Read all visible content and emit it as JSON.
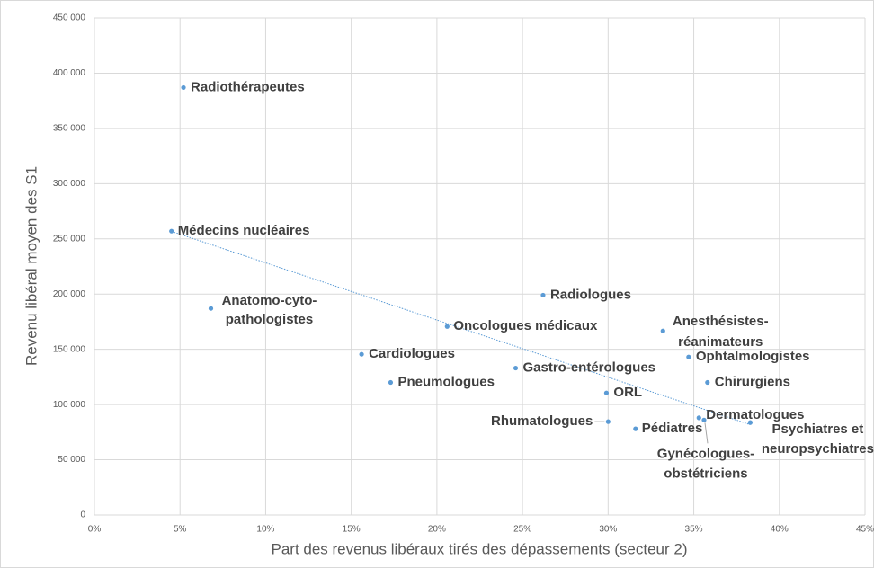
{
  "chart_data": {
    "type": "scatter",
    "x_label": "Part des revenus libéraux tirés des dépassements (secteur 2)",
    "y_label": "Revenu libéral moyen des S1",
    "labels": [
      [
        "Radiothérapeutes"
      ],
      [
        "Médecins nucléaires"
      ],
      [
        "Anatomo-cyto-",
        "pathologistes"
      ],
      [
        "Cardiologues"
      ],
      [
        "Pneumologues"
      ],
      [
        "Oncologues médicaux"
      ],
      [
        "Gastro-entérologues"
      ],
      [
        "Radiologues"
      ],
      [
        "ORL"
      ],
      [
        "Rhumatologues"
      ],
      [
        "Pédiatres"
      ],
      [
        "Anesthésistes-",
        "réanimateurs"
      ],
      [
        "Ophtalmologistes"
      ],
      [
        "Chirurgiens"
      ],
      [
        "Dermatologues"
      ],
      [
        "Gynécologues-",
        "obstétriciens"
      ],
      [
        "Psychiatres et",
        "neuropsychiatres"
      ]
    ],
    "x": [
      5.2,
      4.5,
      6.8,
      15.6,
      17.3,
      20.6,
      24.6,
      26.2,
      29.9,
      30.0,
      31.6,
      33.2,
      34.7,
      35.8,
      35.3,
      35.6,
      38.3
    ],
    "values": [
      387000,
      257000,
      187000,
      145500,
      120000,
      170700,
      133000,
      199000,
      110500,
      84500,
      78000,
      166600,
      143000,
      120000,
      88000,
      86000,
      83700
    ],
    "color": "#5b9bd5",
    "trendline": true,
    "grid": true,
    "xlim": [
      0,
      45
    ],
    "xticks": [
      {
        "value": 0,
        "label": "0%"
      },
      {
        "value": 5,
        "label": "5%"
      },
      {
        "value": 10,
        "label": "10%"
      },
      {
        "value": 15,
        "label": "15%"
      },
      {
        "value": 20,
        "label": "20%"
      },
      {
        "value": 25,
        "label": "25%"
      },
      {
        "value": 30,
        "label": "30%"
      },
      {
        "value": 35,
        "label": "35%"
      },
      {
        "value": 40,
        "label": "40%"
      },
      {
        "value": 45,
        "label": "45%"
      }
    ],
    "ylim": [
      0,
      450000
    ],
    "yticks": [
      0,
      {
        "value": 50000,
        "label": "50 000"
      },
      {
        "value": 100000,
        "label": "100 000"
      },
      {
        "value": 150000,
        "label": "150 000"
      },
      {
        "value": 200000,
        "label": "200 000"
      },
      {
        "value": 250000,
        "label": "250 000"
      },
      {
        "value": 300000,
        "label": "300 000"
      },
      {
        "value": 350000,
        "label": "350 000"
      },
      {
        "value": 400000,
        "label": "400 000"
      },
      {
        "value": 450000,
        "label": "450 000"
      }
    ]
  }
}
